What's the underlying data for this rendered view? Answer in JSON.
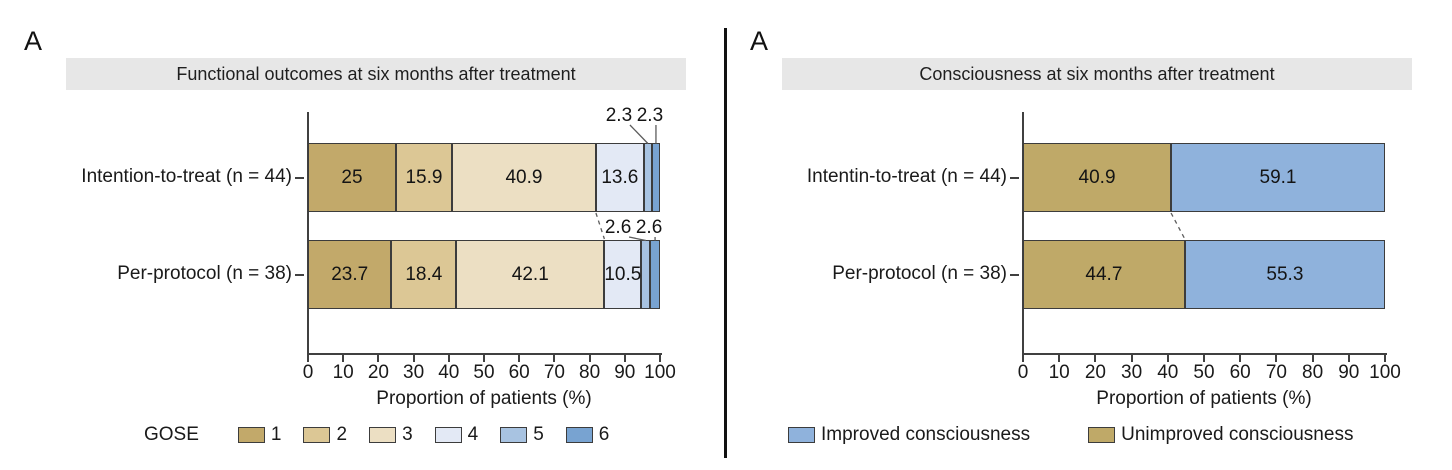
{
  "chart_data": [
    {
      "type": "bar",
      "orientation": "horizontal",
      "stacked": true,
      "panel_label": "A",
      "title": "Functional outcomes at six months after treatment",
      "xlabel": "Proportion of patients (%)",
      "xlim": [
        0,
        100
      ],
      "xticks": [
        0,
        10,
        20,
        30,
        40,
        50,
        60,
        70,
        80,
        90,
        100
      ],
      "categories": [
        "Intention-to-treat (n = 44)",
        "Per-protocol (n = 38)"
      ],
      "legend_title": "GOSE",
      "legend_position": "bottom",
      "grid": false,
      "series": [
        {
          "name": "1",
          "color": "#c2a96a",
          "values": [
            25,
            23.7
          ]
        },
        {
          "name": "2",
          "color": "#dcc795",
          "values": [
            15.9,
            18.4
          ]
        },
        {
          "name": "3",
          "color": "#ecdfc3",
          "values": [
            40.9,
            42.1
          ]
        },
        {
          "name": "4",
          "color": "#e3e9f5",
          "values": [
            13.6,
            10.5
          ]
        },
        {
          "name": "5",
          "color": "#a8c3e1",
          "values": [
            2.3,
            2.6
          ]
        },
        {
          "name": "6",
          "color": "#78a3d1",
          "values": [
            2.3,
            2.6
          ]
        }
      ],
      "outside_labeled_series": [
        4,
        5
      ],
      "connector_after_series_index": 2
    },
    {
      "type": "bar",
      "orientation": "horizontal",
      "stacked": true,
      "panel_label": "A",
      "title": "Consciousness at six months after treatment",
      "xlabel": "Proportion of patients (%)",
      "xlim": [
        0,
        100
      ],
      "xticks": [
        0,
        10,
        20,
        30,
        40,
        50,
        60,
        70,
        80,
        90,
        100
      ],
      "categories": [
        "Intentin-to-treat (n = 44)",
        "Per-protocol (n = 38)"
      ],
      "legend_position": "bottom",
      "grid": false,
      "series": [
        {
          "name": "Unimproved consciousness",
          "color": "#bfa968",
          "values": [
            40.9,
            44.7
          ]
        },
        {
          "name": "Improved consciousness",
          "color": "#8fb2dc",
          "values": [
            59.1,
            55.3
          ]
        }
      ],
      "legend_order": [
        "Improved consciousness",
        "Unimproved consciousness"
      ],
      "connector_after_series_index": 0
    }
  ],
  "colors": {
    "title_band": "#e7e7e7",
    "axis": "#404040",
    "connector": "#5c5c5c",
    "divider": "#111111"
  }
}
